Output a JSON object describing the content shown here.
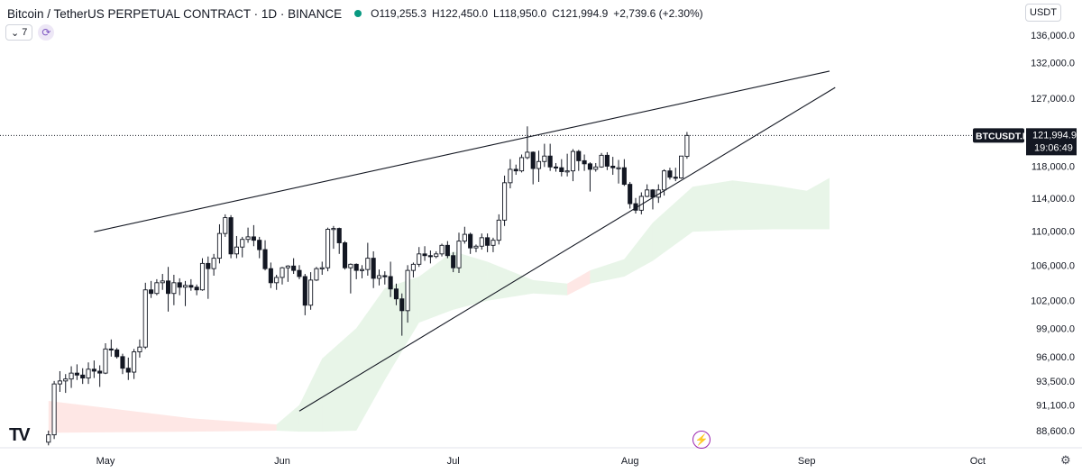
{
  "header": {
    "symbol_title": "Bitcoin / TetherUS PERPETUAL CONTRACT · 1D · BINANCE",
    "ohlc": {
      "o_label": "O",
      "o_value": "119,255.3",
      "h_label": "H",
      "h_value": "122,450.0",
      "l_label": "L",
      "l_value": "118,950.0",
      "c_label": "C",
      "c_value": "121,994.9",
      "change": "+2,739.6 (+2.30%)"
    }
  },
  "indicator": {
    "count": "7",
    "chevron_icon": "chevron-down-icon",
    "refresh_icon": "refresh-icon"
  },
  "currency": {
    "label": "USDT"
  },
  "last_price": {
    "symbol": "BTCUSDT.P",
    "price": "121,994.9",
    "countdown": "19:06:49",
    "value": 121994.9
  },
  "colors": {
    "last_price_bg": "#131722",
    "cloud_green": "#4caf50",
    "cloud_red": "#f44336",
    "candle_up_body": "#ffffff",
    "candle_down_body": "#131722"
  },
  "icons": {
    "logo": "tradingview-logo-icon",
    "bolt": "lightning-icon",
    "settings": "gear-icon"
  },
  "logo_text": "TV",
  "bolt_glyph": "⚡",
  "gear_glyph": "⚙",
  "chart_data": {
    "type": "candlestick",
    "scale": "log",
    "y_ticks": [
      {
        "label": "136,000.0",
        "value": 136000
      },
      {
        "label": "132,000.0",
        "value": 132000
      },
      {
        "label": "127,000.0",
        "value": 127000
      },
      {
        "label": "118,000.0",
        "value": 118000
      },
      {
        "label": "114,000.0",
        "value": 114000
      },
      {
        "label": "110,000.0",
        "value": 110000
      },
      {
        "label": "106,000.0",
        "value": 106000
      },
      {
        "label": "102,000.0",
        "value": 102000
      },
      {
        "label": "99,000.0",
        "value": 99000
      },
      {
        "label": "96,000.0",
        "value": 96000
      },
      {
        "label": "93,500.0",
        "value": 93500
      },
      {
        "label": "91,100.0",
        "value": 91100
      },
      {
        "label": "88,600.0",
        "value": 88600
      }
    ],
    "x_ticks": [
      {
        "label": "May",
        "date": "2025-05-01"
      },
      {
        "label": "Jun",
        "date": "2025-06-01"
      },
      {
        "label": "Jul",
        "date": "2025-07-01"
      },
      {
        "label": "Aug",
        "date": "2025-08-01"
      },
      {
        "label": "Sep",
        "date": "2025-09-01"
      },
      {
        "label": "Oct",
        "date": "2025-10-01"
      }
    ],
    "candles": [
      {
        "date": "2025-04-21",
        "o": 87500,
        "h": 88600,
        "l": 87200,
        "c": 88200
      },
      {
        "date": "2025-04-22",
        "o": 88200,
        "h": 93500,
        "l": 87800,
        "c": 93200
      },
      {
        "date": "2025-04-23",
        "o": 93200,
        "h": 94500,
        "l": 92400,
        "c": 93500
      },
      {
        "date": "2025-04-24",
        "o": 93500,
        "h": 94200,
        "l": 92300,
        "c": 93700
      },
      {
        "date": "2025-04-25",
        "o": 93700,
        "h": 95000,
        "l": 92800,
        "c": 94300
      },
      {
        "date": "2025-04-26",
        "o": 94300,
        "h": 95200,
        "l": 93600,
        "c": 94100
      },
      {
        "date": "2025-04-27",
        "o": 94100,
        "h": 94800,
        "l": 93200,
        "c": 93800
      },
      {
        "date": "2025-04-28",
        "o": 93800,
        "h": 95400,
        "l": 93200,
        "c": 94700
      },
      {
        "date": "2025-04-29",
        "o": 94700,
        "h": 95600,
        "l": 93800,
        "c": 94500
      },
      {
        "date": "2025-04-30",
        "o": 94500,
        "h": 95100,
        "l": 92900,
        "c": 94300
      },
      {
        "date": "2025-05-01",
        "o": 94300,
        "h": 97400,
        "l": 94200,
        "c": 96800
      },
      {
        "date": "2025-05-02",
        "o": 96800,
        "h": 97800,
        "l": 96000,
        "c": 96700
      },
      {
        "date": "2025-05-03",
        "o": 96700,
        "h": 96900,
        "l": 95800,
        "c": 96000
      },
      {
        "date": "2025-05-04",
        "o": 96000,
        "h": 96300,
        "l": 94200,
        "c": 94800
      },
      {
        "date": "2025-05-05",
        "o": 94800,
        "h": 95900,
        "l": 93600,
        "c": 94400
      },
      {
        "date": "2025-05-06",
        "o": 94400,
        "h": 96800,
        "l": 93700,
        "c": 96500
      },
      {
        "date": "2025-05-07",
        "o": 96500,
        "h": 97800,
        "l": 95900,
        "c": 97000
      },
      {
        "date": "2025-05-08",
        "o": 97000,
        "h": 104000,
        "l": 96800,
        "c": 103200
      },
      {
        "date": "2025-05-09",
        "o": 103200,
        "h": 104200,
        "l": 102300,
        "c": 102800
      },
      {
        "date": "2025-05-10",
        "o": 102800,
        "h": 104400,
        "l": 102600,
        "c": 104000
      },
      {
        "date": "2025-05-11",
        "o": 104000,
        "h": 105000,
        "l": 103200,
        "c": 104200
      },
      {
        "date": "2025-05-12",
        "o": 104200,
        "h": 105800,
        "l": 100800,
        "c": 102800
      },
      {
        "date": "2025-05-13",
        "o": 102800,
        "h": 104900,
        "l": 101500,
        "c": 104000
      },
      {
        "date": "2025-05-14",
        "o": 104000,
        "h": 104500,
        "l": 102600,
        "c": 103500
      },
      {
        "date": "2025-05-15",
        "o": 103500,
        "h": 104200,
        "l": 101400,
        "c": 103700
      },
      {
        "date": "2025-05-16",
        "o": 103700,
        "h": 104400,
        "l": 103100,
        "c": 103500
      },
      {
        "date": "2025-05-17",
        "o": 103500,
        "h": 103800,
        "l": 102600,
        "c": 103200
      },
      {
        "date": "2025-05-18",
        "o": 103200,
        "h": 106800,
        "l": 103100,
        "c": 106200
      },
      {
        "date": "2025-05-19",
        "o": 106200,
        "h": 107000,
        "l": 102200,
        "c": 105600
      },
      {
        "date": "2025-05-20",
        "o": 105600,
        "h": 107300,
        "l": 104800,
        "c": 106800
      },
      {
        "date": "2025-05-21",
        "o": 106800,
        "h": 110800,
        "l": 106200,
        "c": 109700
      },
      {
        "date": "2025-05-22",
        "o": 109700,
        "h": 112000,
        "l": 109300,
        "c": 111600
      },
      {
        "date": "2025-05-23",
        "o": 111600,
        "h": 111900,
        "l": 106800,
        "c": 107300
      },
      {
        "date": "2025-05-24",
        "o": 107300,
        "h": 109400,
        "l": 106800,
        "c": 108100
      },
      {
        "date": "2025-05-25",
        "o": 108100,
        "h": 109300,
        "l": 106900,
        "c": 109000
      },
      {
        "date": "2025-05-26",
        "o": 109000,
        "h": 110400,
        "l": 108600,
        "c": 109300
      },
      {
        "date": "2025-05-27",
        "o": 109300,
        "h": 110700,
        "l": 108200,
        "c": 108900
      },
      {
        "date": "2025-05-28",
        "o": 108900,
        "h": 109300,
        "l": 106800,
        "c": 107800
      },
      {
        "date": "2025-05-29",
        "o": 107800,
        "h": 108900,
        "l": 105400,
        "c": 105600
      },
      {
        "date": "2025-05-30",
        "o": 105600,
        "h": 106300,
        "l": 103400,
        "c": 104000
      },
      {
        "date": "2025-05-31",
        "o": 104000,
        "h": 104900,
        "l": 103200,
        "c": 104600
      },
      {
        "date": "2025-06-01",
        "o": 104600,
        "h": 105800,
        "l": 103800,
        "c": 105700
      },
      {
        "date": "2025-06-02",
        "o": 105700,
        "h": 106000,
        "l": 104100,
        "c": 105900
      },
      {
        "date": "2025-06-03",
        "o": 105900,
        "h": 106800,
        "l": 105000,
        "c": 105400
      },
      {
        "date": "2025-06-04",
        "o": 105400,
        "h": 106000,
        "l": 104400,
        "c": 104700
      },
      {
        "date": "2025-06-05",
        "o": 104700,
        "h": 105000,
        "l": 100400,
        "c": 101500
      },
      {
        "date": "2025-06-06",
        "o": 101500,
        "h": 105200,
        "l": 101000,
        "c": 104300
      },
      {
        "date": "2025-06-07",
        "o": 104300,
        "h": 105800,
        "l": 104200,
        "c": 105600
      },
      {
        "date": "2025-06-08",
        "o": 105600,
        "h": 106400,
        "l": 104900,
        "c": 105700
      },
      {
        "date": "2025-06-09",
        "o": 105700,
        "h": 110400,
        "l": 105300,
        "c": 110200
      },
      {
        "date": "2025-06-10",
        "o": 110200,
        "h": 110600,
        "l": 107900,
        "c": 110300
      },
      {
        "date": "2025-06-11",
        "o": 110300,
        "h": 110400,
        "l": 107300,
        "c": 108600
      },
      {
        "date": "2025-06-12",
        "o": 108600,
        "h": 108800,
        "l": 105500,
        "c": 105700
      },
      {
        "date": "2025-06-13",
        "o": 105700,
        "h": 106200,
        "l": 102800,
        "c": 106100
      },
      {
        "date": "2025-06-14",
        "o": 106100,
        "h": 106200,
        "l": 104400,
        "c": 105400
      },
      {
        "date": "2025-06-15",
        "o": 105400,
        "h": 106000,
        "l": 104500,
        "c": 105500
      },
      {
        "date": "2025-06-16",
        "o": 105500,
        "h": 108600,
        "l": 104800,
        "c": 106800
      },
      {
        "date": "2025-06-17",
        "o": 106800,
        "h": 107600,
        "l": 103400,
        "c": 104500
      },
      {
        "date": "2025-06-18",
        "o": 104500,
        "h": 105500,
        "l": 103700,
        "c": 104800
      },
      {
        "date": "2025-06-19",
        "o": 104800,
        "h": 105300,
        "l": 103800,
        "c": 104700
      },
      {
        "date": "2025-06-20",
        "o": 104700,
        "h": 106400,
        "l": 102400,
        "c": 103300
      },
      {
        "date": "2025-06-21",
        "o": 103300,
        "h": 103900,
        "l": 101500,
        "c": 102200
      },
      {
        "date": "2025-06-22",
        "o": 102200,
        "h": 102800,
        "l": 98200,
        "c": 100900
      },
      {
        "date": "2025-06-23",
        "o": 100900,
        "h": 106000,
        "l": 99600,
        "c": 105400
      },
      {
        "date": "2025-06-24",
        "o": 105400,
        "h": 106300,
        "l": 104600,
        "c": 106100
      },
      {
        "date": "2025-06-25",
        "o": 106100,
        "h": 108100,
        "l": 105800,
        "c": 107300
      },
      {
        "date": "2025-06-26",
        "o": 107300,
        "h": 108200,
        "l": 106500,
        "c": 107100
      },
      {
        "date": "2025-06-27",
        "o": 107100,
        "h": 107700,
        "l": 106200,
        "c": 107000
      },
      {
        "date": "2025-06-28",
        "o": 107000,
        "h": 107600,
        "l": 106800,
        "c": 107300
      },
      {
        "date": "2025-06-29",
        "o": 107300,
        "h": 108500,
        "l": 107000,
        "c": 108300
      },
      {
        "date": "2025-06-30",
        "o": 108300,
        "h": 108800,
        "l": 106800,
        "c": 107100
      },
      {
        "date": "2025-07-01",
        "o": 107100,
        "h": 107500,
        "l": 105200,
        "c": 105700
      },
      {
        "date": "2025-07-02",
        "o": 105700,
        "h": 109800,
        "l": 105100,
        "c": 108800
      },
      {
        "date": "2025-07-03",
        "o": 108800,
        "h": 110500,
        "l": 108500,
        "c": 109600
      },
      {
        "date": "2025-07-04",
        "o": 109600,
        "h": 109800,
        "l": 107300,
        "c": 108000
      },
      {
        "date": "2025-07-05",
        "o": 108000,
        "h": 108400,
        "l": 107500,
        "c": 108200
      },
      {
        "date": "2025-07-06",
        "o": 108200,
        "h": 109700,
        "l": 107800,
        "c": 109200
      },
      {
        "date": "2025-07-07",
        "o": 109200,
        "h": 109700,
        "l": 107500,
        "c": 108300
      },
      {
        "date": "2025-07-08",
        "o": 108300,
        "h": 109200,
        "l": 107500,
        "c": 108900
      },
      {
        "date": "2025-07-09",
        "o": 108900,
        "h": 112000,
        "l": 108400,
        "c": 111300
      },
      {
        "date": "2025-07-10",
        "o": 111300,
        "h": 116800,
        "l": 110600,
        "c": 115900
      },
      {
        "date": "2025-07-11",
        "o": 115900,
        "h": 118900,
        "l": 115200,
        "c": 117600
      },
      {
        "date": "2025-07-12",
        "o": 117600,
        "h": 118200,
        "l": 116900,
        "c": 117400
      },
      {
        "date": "2025-07-13",
        "o": 117400,
        "h": 119500,
        "l": 117200,
        "c": 119100
      },
      {
        "date": "2025-07-14",
        "o": 119100,
        "h": 123200,
        "l": 118900,
        "c": 119800
      },
      {
        "date": "2025-07-15",
        "o": 119800,
        "h": 119900,
        "l": 115700,
        "c": 117700
      },
      {
        "date": "2025-07-16",
        "o": 117700,
        "h": 120000,
        "l": 116000,
        "c": 118600
      },
      {
        "date": "2025-07-17",
        "o": 118600,
        "h": 120900,
        "l": 117900,
        "c": 119300
      },
      {
        "date": "2025-07-18",
        "o": 119300,
        "h": 120900,
        "l": 117400,
        "c": 117900
      },
      {
        "date": "2025-07-19",
        "o": 117900,
        "h": 118400,
        "l": 117300,
        "c": 117800
      },
      {
        "date": "2025-07-20",
        "o": 117800,
        "h": 118900,
        "l": 116700,
        "c": 117300
      },
      {
        "date": "2025-07-21",
        "o": 117300,
        "h": 119600,
        "l": 116700,
        "c": 117400
      },
      {
        "date": "2025-07-22",
        "o": 117400,
        "h": 120200,
        "l": 116100,
        "c": 119900
      },
      {
        "date": "2025-07-23",
        "o": 119900,
        "h": 120100,
        "l": 117400,
        "c": 118700
      },
      {
        "date": "2025-07-24",
        "o": 118700,
        "h": 119500,
        "l": 117400,
        "c": 118300
      },
      {
        "date": "2025-07-25",
        "o": 118300,
        "h": 118500,
        "l": 114800,
        "c": 117600
      },
      {
        "date": "2025-07-26",
        "o": 117600,
        "h": 118400,
        "l": 117300,
        "c": 117900
      },
      {
        "date": "2025-07-27",
        "o": 117900,
        "h": 119700,
        "l": 117800,
        "c": 119400
      },
      {
        "date": "2025-07-28",
        "o": 119400,
        "h": 119800,
        "l": 117500,
        "c": 118000
      },
      {
        "date": "2025-07-29",
        "o": 118000,
        "h": 119200,
        "l": 116900,
        "c": 117800
      },
      {
        "date": "2025-07-30",
        "o": 117800,
        "h": 118800,
        "l": 115800,
        "c": 117800
      },
      {
        "date": "2025-07-31",
        "o": 117800,
        "h": 118900,
        "l": 115500,
        "c": 115700
      },
      {
        "date": "2025-08-01",
        "o": 115700,
        "h": 116000,
        "l": 112700,
        "c": 113300
      },
      {
        "date": "2025-08-02",
        "o": 113300,
        "h": 114000,
        "l": 112100,
        "c": 112500
      },
      {
        "date": "2025-08-03",
        "o": 112500,
        "h": 114700,
        "l": 112000,
        "c": 114200
      },
      {
        "date": "2025-08-04",
        "o": 114200,
        "h": 115700,
        "l": 114100,
        "c": 115000
      },
      {
        "date": "2025-08-05",
        "o": 115000,
        "h": 115100,
        "l": 112600,
        "c": 114100
      },
      {
        "date": "2025-08-06",
        "o": 114100,
        "h": 115700,
        "l": 113400,
        "c": 115000
      },
      {
        "date": "2025-08-07",
        "o": 115000,
        "h": 117600,
        "l": 114300,
        "c": 117400
      },
      {
        "date": "2025-08-08",
        "o": 117400,
        "h": 117800,
        "l": 116300,
        "c": 116600
      },
      {
        "date": "2025-08-09",
        "o": 116600,
        "h": 117800,
        "l": 116100,
        "c": 116500
      },
      {
        "date": "2025-08-10",
        "o": 116500,
        "h": 119300,
        "l": 116400,
        "c": 119300
      },
      {
        "date": "2025-08-11",
        "o": 119255.3,
        "h": 122450,
        "l": 118950,
        "c": 121994.9
      }
    ],
    "trendlines": [
      {
        "name": "upper",
        "from": {
          "date": "2025-04-29",
          "price": 109900
        },
        "to": {
          "date": "2025-09-05",
          "price": 130800
        }
      },
      {
        "name": "lower",
        "from": {
          "date": "2025-06-04",
          "price": 90500
        },
        "to": {
          "date": "2025-09-06",
          "price": 128500
        }
      }
    ],
    "cloud": [
      {
        "date": "2025-04-21",
        "top": 91500,
        "bottom": 88400,
        "color": "red"
      },
      {
        "date": "2025-05-16",
        "top": 89800,
        "bottom": 88500,
        "color": "red"
      },
      {
        "date": "2025-05-31",
        "top": 89200,
        "bottom": 88600,
        "color": "green"
      },
      {
        "date": "2025-06-04",
        "top": 91100,
        "bottom": 88500,
        "color": "green"
      },
      {
        "date": "2025-06-08",
        "top": 95800,
        "bottom": 88500,
        "color": "green"
      },
      {
        "date": "2025-06-14",
        "top": 99000,
        "bottom": 88600,
        "color": "green"
      },
      {
        "date": "2025-06-19",
        "top": 103400,
        "bottom": 93600,
        "color": "green"
      },
      {
        "date": "2025-06-25",
        "top": 104700,
        "bottom": 99600,
        "color": "green"
      },
      {
        "date": "2025-07-01",
        "top": 107600,
        "bottom": 101000,
        "color": "green"
      },
      {
        "date": "2025-07-07",
        "top": 106400,
        "bottom": 102000,
        "color": "green"
      },
      {
        "date": "2025-07-15",
        "top": 104300,
        "bottom": 102800,
        "color": "green"
      },
      {
        "date": "2025-07-21",
        "top": 103900,
        "bottom": 102600,
        "color": "red"
      },
      {
        "date": "2025-07-25",
        "top": 105400,
        "bottom": 103900,
        "color": "green"
      },
      {
        "date": "2025-07-31",
        "top": 106700,
        "bottom": 104700,
        "color": "green"
      },
      {
        "date": "2025-08-05",
        "top": 111000,
        "bottom": 106500,
        "color": "green"
      },
      {
        "date": "2025-08-12",
        "top": 115400,
        "bottom": 109900,
        "color": "green"
      },
      {
        "date": "2025-08-19",
        "top": 116200,
        "bottom": 110100,
        "color": "green"
      },
      {
        "date": "2025-08-26",
        "top": 115600,
        "bottom": 110200,
        "color": "green"
      },
      {
        "date": "2025-09-01",
        "top": 114900,
        "bottom": 110200,
        "color": "green"
      },
      {
        "date": "2025-09-05",
        "top": 116500,
        "bottom": 110200,
        "color": "green"
      }
    ]
  }
}
